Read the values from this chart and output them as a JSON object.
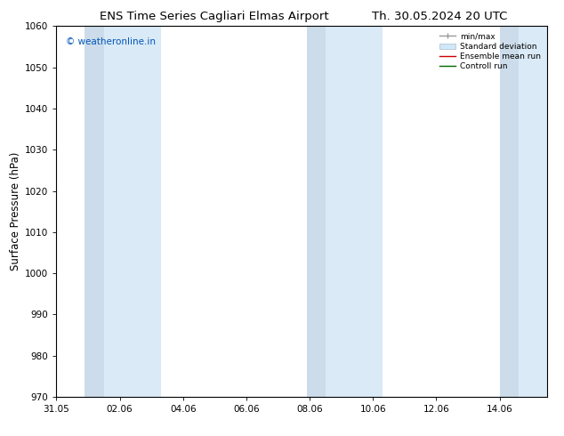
{
  "title_left": "ENS Time Series Cagliari Elmas Airport",
  "title_right": "Th. 30.05.2024 20 UTC",
  "ylabel": "Surface Pressure (hPa)",
  "ylim": [
    970,
    1060
  ],
  "yticks": [
    970,
    980,
    990,
    1000,
    1010,
    1020,
    1030,
    1040,
    1050,
    1060
  ],
  "x_min": 0,
  "x_max": 15.5,
  "xtick_labels": [
    "31.05",
    "02.06",
    "04.06",
    "06.06",
    "08.06",
    "10.06",
    "12.06",
    "14.06"
  ],
  "xtick_positions": [
    0,
    2,
    4,
    6,
    8,
    10,
    12,
    14
  ],
  "shaded_bands": [
    {
      "x_start": 0.9,
      "x_end": 1.5,
      "color": "#ccdcea"
    },
    {
      "x_start": 1.5,
      "x_end": 3.3,
      "color": "#daeaf6"
    },
    {
      "x_start": 7.9,
      "x_end": 8.5,
      "color": "#ccdcea"
    },
    {
      "x_start": 8.5,
      "x_end": 10.3,
      "color": "#daeaf6"
    },
    {
      "x_start": 14.0,
      "x_end": 14.6,
      "color": "#ccdcea"
    },
    {
      "x_start": 14.6,
      "x_end": 15.5,
      "color": "#daeaf6"
    }
  ],
  "watermark": "© weatheronline.in",
  "watermark_color": "#0055bb",
  "background_color": "#ffffff",
  "plot_bg_color": "#ffffff",
  "legend_labels": [
    "min/max",
    "Standard deviation",
    "Ensemble mean run",
    "Controll run"
  ],
  "title_fontsize": 9.5,
  "tick_fontsize": 7.5,
  "ylabel_fontsize": 8.5
}
